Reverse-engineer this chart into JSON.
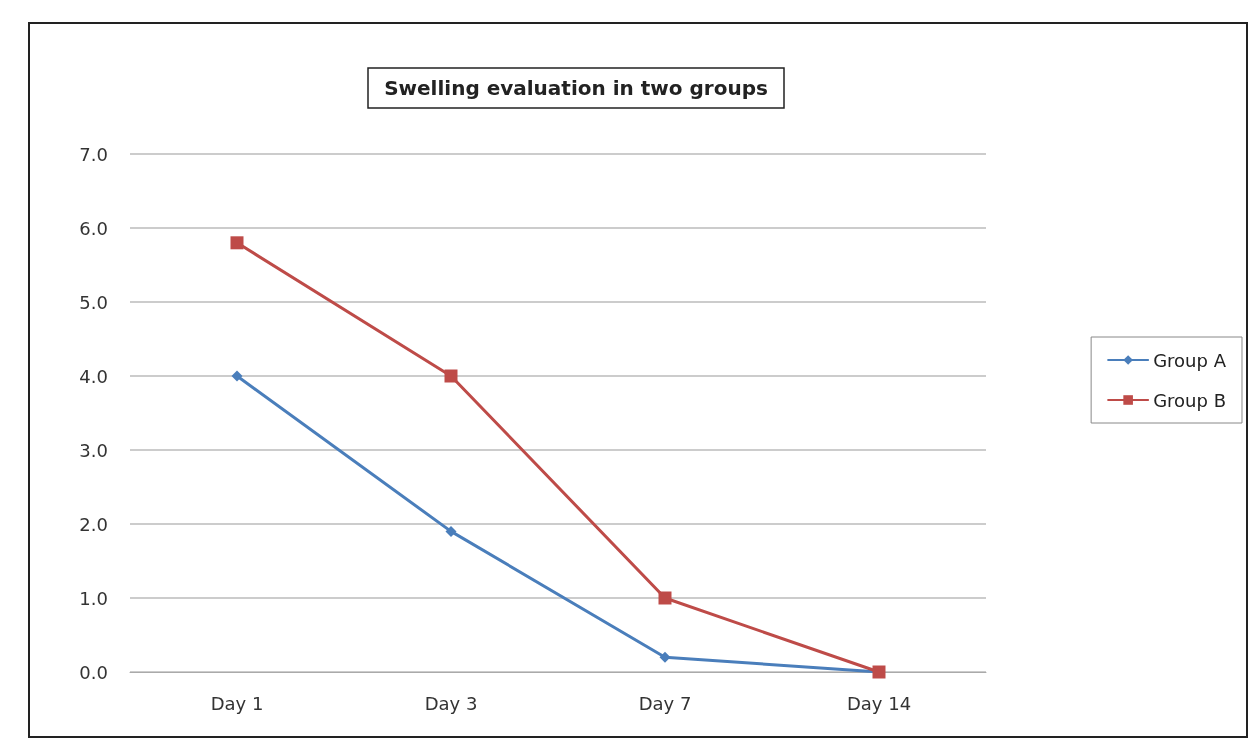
{
  "chart_data": {
    "type": "line",
    "title": "Swelling evaluation in two groups",
    "categories": [
      "Day 1",
      "Day 3",
      "Day 7",
      "Day 14"
    ],
    "series": [
      {
        "name": "Group A",
        "color": "#4a7ebb",
        "marker": "diamond",
        "values": [
          4.0,
          1.9,
          0.2,
          0.0
        ]
      },
      {
        "name": "Group B",
        "color": "#be4b48",
        "marker": "square",
        "values": [
          5.8,
          4.0,
          1.0,
          0.0
        ]
      }
    ],
    "ylim": [
      0,
      7
    ],
    "yticks": [
      {
        "value": 0,
        "label": "0.0"
      },
      {
        "value": 1,
        "label": "1.0"
      },
      {
        "value": 2,
        "label": "2.0"
      },
      {
        "value": 3,
        "label": "3.0"
      },
      {
        "value": 4,
        "label": "4.0"
      },
      {
        "value": 5,
        "label": "5.0"
      },
      {
        "value": 6,
        "label": "6.0"
      },
      {
        "value": 7,
        "label": "7.0"
      }
    ],
    "grid": "y",
    "legend": "right",
    "line_style": "solid"
  }
}
